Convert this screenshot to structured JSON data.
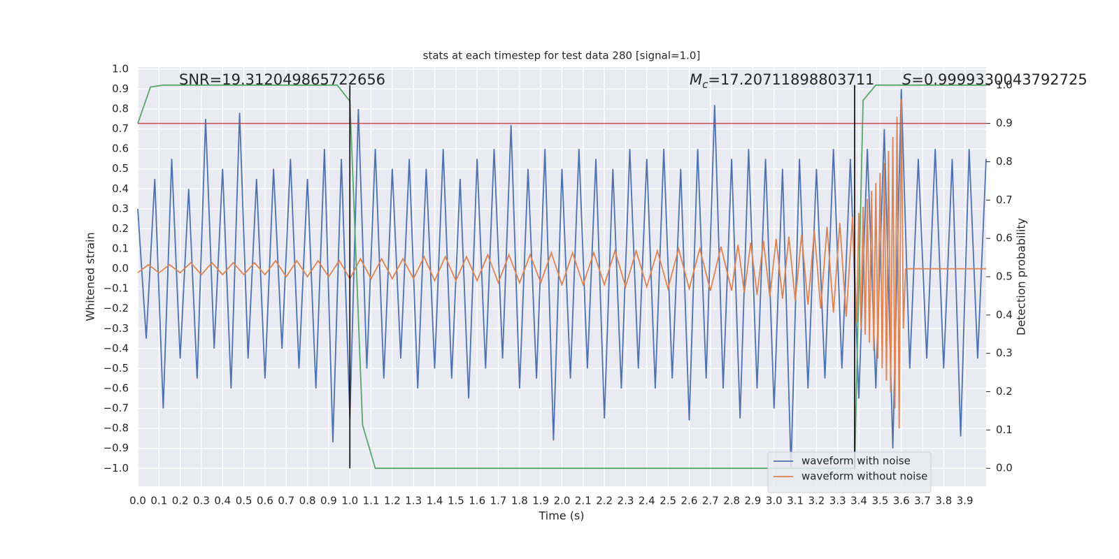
{
  "chart_data": {
    "type": "line",
    "title": "stats at each timestep for test data 280 [signal=1.0]",
    "xlabel": "Time (s)",
    "ylabel": "Whitened strain",
    "y2label": "Detection probability",
    "xlim": [
      0,
      4
    ],
    "ylim": [
      -1.09,
      1.01
    ],
    "y2lim": [
      -0.047,
      1.047
    ],
    "grid": true,
    "legend_loc": "lower right",
    "xticks": [
      {
        "value": 0.0,
        "label": "0.0"
      },
      0.1,
      0.2,
      0.3,
      0.4,
      0.5,
      0.6,
      0.7,
      0.8,
      0.9,
      {
        "value": 1.0,
        "label": "1.0"
      },
      1.1,
      1.2,
      1.3,
      1.4,
      1.5,
      1.6,
      1.7,
      1.8,
      1.9,
      {
        "value": 2.0,
        "label": "2.0"
      },
      2.1,
      2.2,
      2.3,
      2.4,
      2.5,
      2.6,
      2.7,
      2.8,
      2.9,
      {
        "value": 3.0,
        "label": "3.0"
      },
      3.1,
      3.2,
      3.3,
      3.4,
      3.5,
      3.6,
      3.7,
      3.8,
      3.9
    ],
    "yticks": [
      {
        "value": -1.0,
        "label": "−1.0"
      },
      {
        "value": -0.9,
        "label": "−0.9"
      },
      {
        "value": -0.8,
        "label": "−0.8"
      },
      {
        "value": -0.7,
        "label": "−0.7"
      },
      {
        "value": -0.6,
        "label": "−0.6"
      },
      {
        "value": -0.5,
        "label": "−0.5"
      },
      {
        "value": -0.4,
        "label": "−0.4"
      },
      {
        "value": -0.3,
        "label": "−0.3"
      },
      {
        "value": -0.2,
        "label": "−0.2"
      },
      {
        "value": -0.1,
        "label": "−0.1"
      },
      {
        "value": 0.0,
        "label": "0.0"
      },
      0.1,
      0.2,
      0.3,
      0.4,
      0.5,
      0.6,
      0.7,
      0.8,
      0.9,
      {
        "value": 1.0,
        "label": "1.0"
      }
    ],
    "y2ticks": [
      {
        "value": 0.0,
        "label": "0.0"
      },
      0.1,
      0.2,
      0.3,
      0.4,
      0.5,
      0.6,
      0.7,
      0.8,
      0.9,
      {
        "value": 1.0,
        "label": "1.0"
      }
    ],
    "series": [
      {
        "name": "waveform with noise",
        "color": "#4c72b0",
        "x": [
          0,
          0.04,
          0.08,
          0.12,
          0.16,
          0.2,
          0.24,
          0.28,
          0.32,
          0.36,
          0.4,
          0.44,
          0.48,
          0.52,
          0.56,
          0.6,
          0.64,
          0.68,
          0.72,
          0.76,
          0.8,
          0.84,
          0.88,
          0.92,
          0.96,
          1.0,
          1.04,
          1.08,
          1.12,
          1.16,
          1.2,
          1.24,
          1.28,
          1.32,
          1.36,
          1.4,
          1.44,
          1.48,
          1.52,
          1.56,
          1.6,
          1.64,
          1.68,
          1.72,
          1.76,
          1.8,
          1.84,
          1.88,
          1.92,
          1.96,
          2.0,
          2.04,
          2.08,
          2.12,
          2.16,
          2.2,
          2.24,
          2.28,
          2.32,
          2.36,
          2.4,
          2.44,
          2.48,
          2.52,
          2.56,
          2.6,
          2.64,
          2.68,
          2.72,
          2.76,
          2.8,
          2.84,
          2.88,
          2.92,
          2.96,
          3.0,
          3.04,
          3.08,
          3.12,
          3.16,
          3.2,
          3.24,
          3.28,
          3.32,
          3.36,
          3.4,
          3.44,
          3.48,
          3.52,
          3.56,
          3.6,
          3.64,
          3.68,
          3.72,
          3.76,
          3.8,
          3.84,
          3.88,
          3.92,
          3.96,
          4.0
        ],
        "values": [
          0.3,
          -0.35,
          0.45,
          -0.7,
          0.55,
          -0.45,
          0.4,
          -0.55,
          0.75,
          -0.4,
          0.5,
          -0.6,
          0.78,
          -0.45,
          0.45,
          -0.55,
          0.5,
          -0.4,
          0.55,
          -0.5,
          0.45,
          -0.6,
          0.6,
          -0.87,
          0.55,
          -0.75,
          0.8,
          -0.5,
          0.6,
          -0.55,
          0.5,
          -0.45,
          0.55,
          -0.6,
          0.5,
          -0.5,
          0.6,
          -0.55,
          0.45,
          -0.65,
          0.55,
          -0.5,
          0.6,
          -0.45,
          0.72,
          -0.6,
          0.5,
          -0.55,
          0.6,
          -0.86,
          0.5,
          -0.55,
          0.6,
          -0.5,
          0.55,
          -0.75,
          0.5,
          -0.6,
          0.6,
          -0.5,
          0.55,
          -0.6,
          0.6,
          -0.55,
          0.5,
          -0.76,
          0.6,
          -0.55,
          0.82,
          -0.6,
          0.55,
          -0.75,
          0.6,
          -0.6,
          0.55,
          -0.7,
          0.5,
          -1.0,
          0.55,
          -0.6,
          0.5,
          -0.55,
          0.6,
          -0.5,
          0.55,
          -0.65,
          0.6,
          -0.6,
          0.7,
          -0.9,
          0.9,
          -0.5,
          0.55,
          -0.45,
          0.6,
          -0.5,
          0.55,
          -0.84,
          0.6,
          -0.45,
          0.55
        ]
      },
      {
        "name": "waveform without noise",
        "color": "#dd8452",
        "x": [
          0,
          0.05,
          0.1,
          0.15,
          0.2,
          0.25,
          0.3,
          0.35,
          0.4,
          0.45,
          0.5,
          0.55,
          0.6,
          0.65,
          0.7,
          0.75,
          0.8,
          0.85,
          0.9,
          0.95,
          1.0,
          1.05,
          1.1,
          1.15,
          1.2,
          1.25,
          1.3,
          1.35,
          1.4,
          1.45,
          1.5,
          1.55,
          1.6,
          1.65,
          1.7,
          1.75,
          1.8,
          1.85,
          1.9,
          1.95,
          2.0,
          2.05,
          2.1,
          2.15,
          2.2,
          2.25,
          2.3,
          2.35,
          2.4,
          2.45,
          2.5,
          2.55,
          2.6,
          2.65,
          2.7,
          2.75,
          2.8,
          2.83,
          2.86,
          2.89,
          2.92,
          2.95,
          2.98,
          3.01,
          3.04,
          3.07,
          3.1,
          3.13,
          3.16,
          3.19,
          3.22,
          3.25,
          3.28,
          3.31,
          3.34,
          3.37,
          3.39,
          3.4,
          3.41,
          3.42,
          3.43,
          3.44,
          3.45,
          3.46,
          3.47,
          3.48,
          3.49,
          3.5,
          3.51,
          3.52,
          3.53,
          3.54,
          3.55,
          3.56,
          3.57,
          3.58,
          3.59,
          3.6,
          3.61,
          3.62,
          4.0
        ],
        "values": [
          -0.02,
          0.02,
          -0.02,
          0.02,
          -0.02,
          0.03,
          -0.03,
          0.03,
          -0.03,
          0.03,
          -0.03,
          0.03,
          -0.03,
          0.04,
          -0.04,
          0.04,
          -0.04,
          0.04,
          -0.04,
          0.04,
          -0.05,
          0.05,
          -0.05,
          0.05,
          -0.05,
          0.05,
          -0.05,
          0.06,
          -0.06,
          0.06,
          -0.06,
          0.06,
          -0.06,
          0.07,
          -0.07,
          0.07,
          -0.07,
          0.07,
          -0.07,
          0.08,
          -0.08,
          0.08,
          -0.08,
          0.08,
          -0.08,
          0.09,
          -0.09,
          0.09,
          -0.09,
          0.09,
          -0.1,
          0.1,
          -0.1,
          0.1,
          -0.11,
          0.11,
          -0.11,
          0.12,
          -0.12,
          0.13,
          -0.13,
          0.14,
          -0.14,
          0.15,
          -0.15,
          0.16,
          -0.16,
          0.17,
          -0.18,
          0.19,
          -0.2,
          0.21,
          -0.22,
          0.23,
          -0.24,
          0.26,
          -0.27,
          0.28,
          -0.3,
          0.31,
          -0.33,
          0.35,
          -0.37,
          0.39,
          -0.41,
          0.43,
          -0.45,
          0.48,
          -0.5,
          0.53,
          -0.56,
          0.59,
          -0.62,
          0.66,
          -0.7,
          0.76,
          -0.8,
          0.85,
          -0.3,
          0.0,
          0.0
        ]
      },
      {
        "color": "#55a868",
        "axis": "y2",
        "x": [
          0,
          0.06,
          0.12,
          0.94,
          1.0,
          1.06,
          1.12,
          3.38,
          3.42,
          3.48,
          4.0
        ],
        "values": [
          0.9,
          0.995,
          1.0,
          1.0,
          0.958,
          0.113,
          0.0,
          0.0,
          0.96,
          1.0,
          1.0
        ]
      }
    ],
    "threshold": 0.9,
    "threshold_color": "#c44e52",
    "vlines": [
      1.0,
      3.38
    ],
    "vline_span": [
      0.0,
      1.0
    ],
    "vline_color": "#000000",
    "annotations": [
      {
        "text": "SNR=19.312049865722656"
      },
      {
        "symbol": "M",
        "subscript": "c",
        "text": "=17.20711898803711"
      },
      {
        "symbol": "S",
        "text": "=0.9999330043792725"
      }
    ]
  }
}
